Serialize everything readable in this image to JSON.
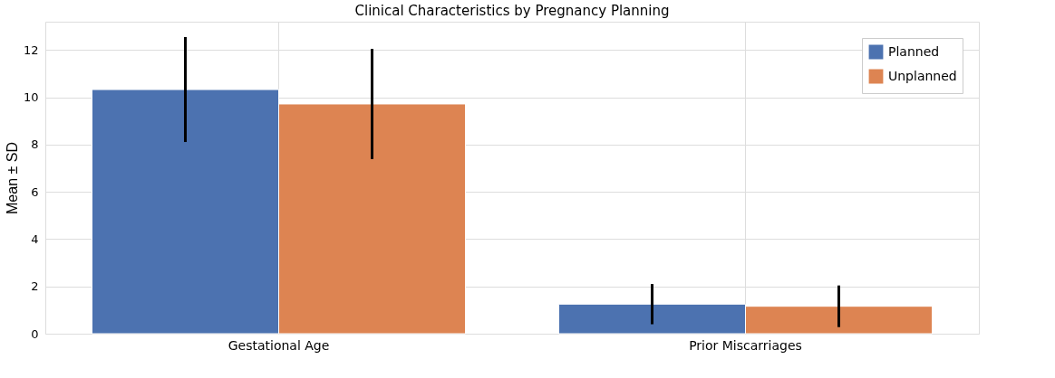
{
  "chart_data": {
    "type": "bar",
    "title": "Clinical Characteristics by Pregnancy Planning",
    "ylabel": "Mean ± SD",
    "categories": [
      "Gestational Age",
      "Prior Miscarriages"
    ],
    "series": [
      {
        "name": "Planned",
        "color": "#4c72b0",
        "values": [
          10.33,
          1.25
        ],
        "errors": [
          2.22,
          0.85
        ]
      },
      {
        "name": "Unplanned",
        "color": "#dd8452",
        "values": [
          9.72,
          1.16
        ],
        "errors": [
          2.33,
          0.88
        ]
      }
    ],
    "ylim": [
      0,
      13.2
    ],
    "yticks": [
      0,
      2,
      4,
      6,
      8,
      10,
      12
    ],
    "grid": true,
    "legend": "top right"
  }
}
